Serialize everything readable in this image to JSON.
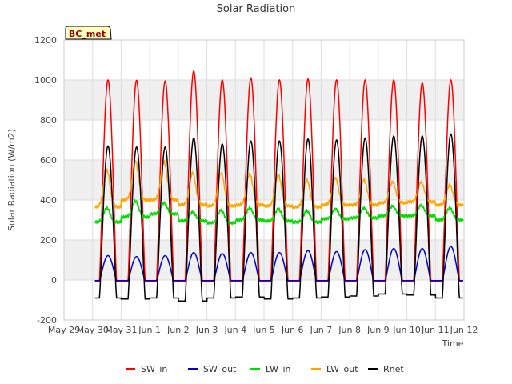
{
  "chart_data": {
    "type": "line",
    "title": "Solar Radiation",
    "xlabel": "Time",
    "ylabel": "Solar Radiation (W/m2)",
    "ylim": [
      -200,
      1200
    ],
    "yticks": [
      -200,
      0,
      200,
      400,
      600,
      800,
      1000,
      1200
    ],
    "xlim": [
      0,
      14
    ],
    "xticks": [
      {
        "x": 0,
        "label": "May 29"
      },
      {
        "x": 1,
        "label": "May 30"
      },
      {
        "x": 2,
        "label": "May 31"
      },
      {
        "x": 3,
        "label": "Jun 1"
      },
      {
        "x": 4,
        "label": "Jun 2"
      },
      {
        "x": 5,
        "label": "Jun 3"
      },
      {
        "x": 6,
        "label": "Jun 4"
      },
      {
        "x": 7,
        "label": "Jun 5"
      },
      {
        "x": 8,
        "label": "Jun 6"
      },
      {
        "x": 9,
        "label": "Jun 7"
      },
      {
        "x": 10,
        "label": "Jun 8"
      },
      {
        "x": 11,
        "label": "Jun 9"
      },
      {
        "x": 12,
        "label": "Jun 10"
      },
      {
        "x": 13,
        "label": "Jun 11"
      },
      {
        "x": 14,
        "label": "Jun 12"
      }
    ],
    "x_unit": "days since May 29 00:00",
    "station_label": "BC_met",
    "background_bands": true,
    "legend_position": "bottom",
    "days": [
      "May 30",
      "May 31",
      "Jun 1",
      "Jun 2",
      "Jun 3",
      "Jun 4",
      "Jun 5",
      "Jun 6",
      "Jun 7",
      "Jun 8",
      "Jun 9",
      "Jun 10",
      "Jun 11"
    ],
    "series": [
      {
        "name": "SW_in",
        "color": "#ff0000",
        "daily_peak": [
          1005,
          1003,
          1000,
          1050,
          1005,
          1015,
          1005,
          1010,
          1005,
          1005,
          1005,
          990,
          1005
        ]
      },
      {
        "name": "SW_out",
        "color": "#0000cc",
        "daily_peak": [
          125,
          120,
          125,
          140,
          135,
          140,
          140,
          150,
          145,
          155,
          160,
          160,
          170
        ]
      },
      {
        "name": "LW_in",
        "color": "#00dd00",
        "daily_peak": [
          360,
          395,
          385,
          340,
          350,
          360,
          355,
          345,
          355,
          360,
          370,
          375,
          360
        ],
        "night_value": [
          290,
          315,
          330,
          295,
          285,
          300,
          295,
          290,
          305,
          310,
          320,
          320,
          300
        ]
      },
      {
        "name": "LW_out",
        "color": "#ffa500",
        "daily_peak": [
          550,
          595,
          590,
          535,
          535,
          530,
          525,
          500,
          510,
          500,
          490,
          490,
          475
        ],
        "night_value": [
          365,
          400,
          400,
          375,
          370,
          375,
          370,
          365,
          375,
          375,
          385,
          390,
          375
        ]
      },
      {
        "name": "Rnet",
        "color": "#000000",
        "daily_peak": [
          670,
          665,
          665,
          710,
          680,
          695,
          695,
          705,
          700,
          710,
          720,
          720,
          730
        ],
        "night_value": [
          -90,
          -95,
          -90,
          -105,
          -90,
          -85,
          -95,
          -90,
          -85,
          -80,
          -70,
          -75,
          -90
        ]
      }
    ]
  }
}
